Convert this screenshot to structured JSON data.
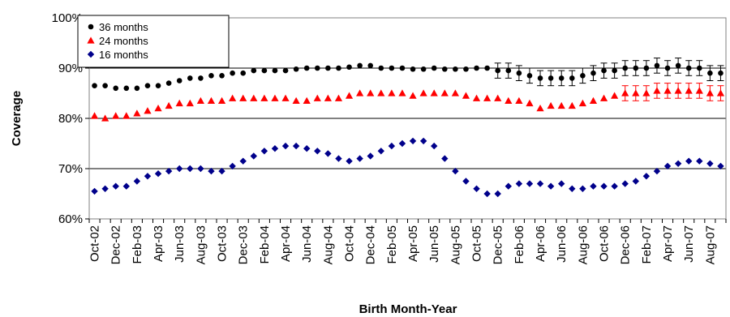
{
  "chart_data": {
    "type": "scatter",
    "title": "",
    "xlabel": "Birth Month-Year",
    "ylabel": "Coverage",
    "ylim": [
      60,
      100
    ],
    "y_ticks": [
      "60%",
      "70%",
      "80%",
      "90%",
      "100%"
    ],
    "y_tick_values": [
      60,
      70,
      80,
      90,
      100
    ],
    "grid": "horizontal",
    "legend_position": "top-left",
    "x": [
      "Oct-02",
      "Nov-02",
      "Dec-02",
      "Jan-03",
      "Feb-03",
      "Mar-03",
      "Apr-03",
      "May-03",
      "Jun-03",
      "Jul-03",
      "Aug-03",
      "Sep-03",
      "Oct-03",
      "Nov-03",
      "Dec-03",
      "Jan-04",
      "Feb-04",
      "Mar-04",
      "Apr-04",
      "May-04",
      "Jun-04",
      "Jul-04",
      "Aug-04",
      "Sep-04",
      "Oct-04",
      "Nov-04",
      "Dec-04",
      "Jan-05",
      "Feb-05",
      "Mar-05",
      "Apr-05",
      "May-05",
      "Jun-05",
      "Jul-05",
      "Aug-05",
      "Sep-05",
      "Oct-05",
      "Nov-05",
      "Dec-05",
      "Jan-06",
      "Feb-06",
      "Mar-06",
      "Apr-06",
      "May-06",
      "Jun-06",
      "Jul-06",
      "Aug-06",
      "Sep-06",
      "Oct-06",
      "Nov-06",
      "Dec-06",
      "Jan-07",
      "Feb-07",
      "Mar-07",
      "Apr-07",
      "May-07",
      "Jun-07",
      "Jul-07",
      "Aug-07",
      "Sep-07"
    ],
    "x_tick_labels": [
      "Oct-02",
      "Dec-02",
      "Feb-03",
      "Apr-03",
      "Jun-03",
      "Aug-03",
      "Oct-03",
      "Dec-03",
      "Feb-04",
      "Apr-04",
      "Jun-04",
      "Aug-04",
      "Oct-04",
      "Dec-04",
      "Feb-05",
      "Apr-05",
      "Jun-05",
      "Aug-05",
      "Oct-05",
      "Dec-05",
      "Feb-06",
      "Apr-06",
      "Jun-06",
      "Aug-06",
      "Oct-06",
      "Dec-06",
      "Feb-07",
      "Apr-07",
      "Jun-07",
      "Aug-07"
    ],
    "series": [
      {
        "name": "36 months",
        "color": "#000000",
        "marker": "circle",
        "values": [
          86.5,
          86.5,
          86.0,
          86.0,
          86.0,
          86.5,
          86.5,
          87.0,
          87.5,
          88.0,
          88.0,
          88.5,
          88.5,
          89.0,
          89.0,
          89.5,
          89.5,
          89.5,
          89.5,
          89.8,
          90.0,
          90.0,
          90.0,
          90.0,
          90.2,
          90.5,
          90.5,
          90.0,
          90.0,
          90.0,
          89.8,
          89.8,
          90.0,
          89.8,
          89.8,
          89.8,
          90.0,
          90.0,
          89.5,
          89.5,
          89.0,
          88.5,
          88.0,
          88.0,
          88.0,
          88.0,
          88.5,
          89.0,
          89.5,
          89.5,
          90.0,
          90.0,
          90.0,
          90.5,
          90.0,
          90.5,
          90.0,
          90.0,
          89.0,
          89.0
        ],
        "error_from": "Dec-05",
        "error_bar": 1.5
      },
      {
        "name": "24 months",
        "color": "#ff0000",
        "marker": "triangle",
        "values": [
          80.5,
          80.0,
          80.5,
          80.5,
          81.0,
          81.5,
          82.0,
          82.5,
          83.0,
          83.0,
          83.5,
          83.5,
          83.5,
          84.0,
          84.0,
          84.0,
          84.0,
          84.0,
          84.0,
          83.5,
          83.5,
          84.0,
          84.0,
          84.0,
          84.5,
          85.0,
          85.0,
          85.0,
          85.0,
          85.0,
          84.5,
          85.0,
          85.0,
          85.0,
          85.0,
          84.5,
          84.0,
          84.0,
          84.0,
          83.5,
          83.5,
          83.0,
          82.0,
          82.5,
          82.5,
          82.5,
          83.0,
          83.5,
          84.0,
          84.5,
          85.0,
          85.0,
          85.0,
          85.5,
          85.5,
          85.5,
          85.5,
          85.5,
          85.0,
          85.0
        ],
        "error_from": "Dec-06",
        "error_bar": 1.5
      },
      {
        "name": "16 months",
        "color": "#00008b",
        "marker": "diamond",
        "values": [
          65.5,
          66.0,
          66.5,
          66.5,
          67.5,
          68.5,
          69.0,
          69.5,
          70.0,
          70.0,
          70.0,
          69.5,
          69.5,
          70.5,
          71.5,
          72.5,
          73.5,
          74.0,
          74.5,
          74.5,
          74.0,
          73.5,
          73.0,
          72.0,
          71.5,
          72.0,
          72.5,
          73.5,
          74.5,
          75.0,
          75.5,
          75.5,
          74.5,
          72.0,
          69.5,
          67.5,
          66.0,
          65.0,
          65.0,
          66.5,
          67.0,
          67.0,
          67.0,
          66.5,
          67.0,
          66.0,
          66.0,
          66.5,
          66.5,
          66.5,
          67.0,
          67.5,
          68.5,
          69.5,
          70.5,
          71.0,
          71.5,
          71.5,
          71.0,
          70.5
        ],
        "error_from": null,
        "error_bar": 0
      }
    ]
  }
}
